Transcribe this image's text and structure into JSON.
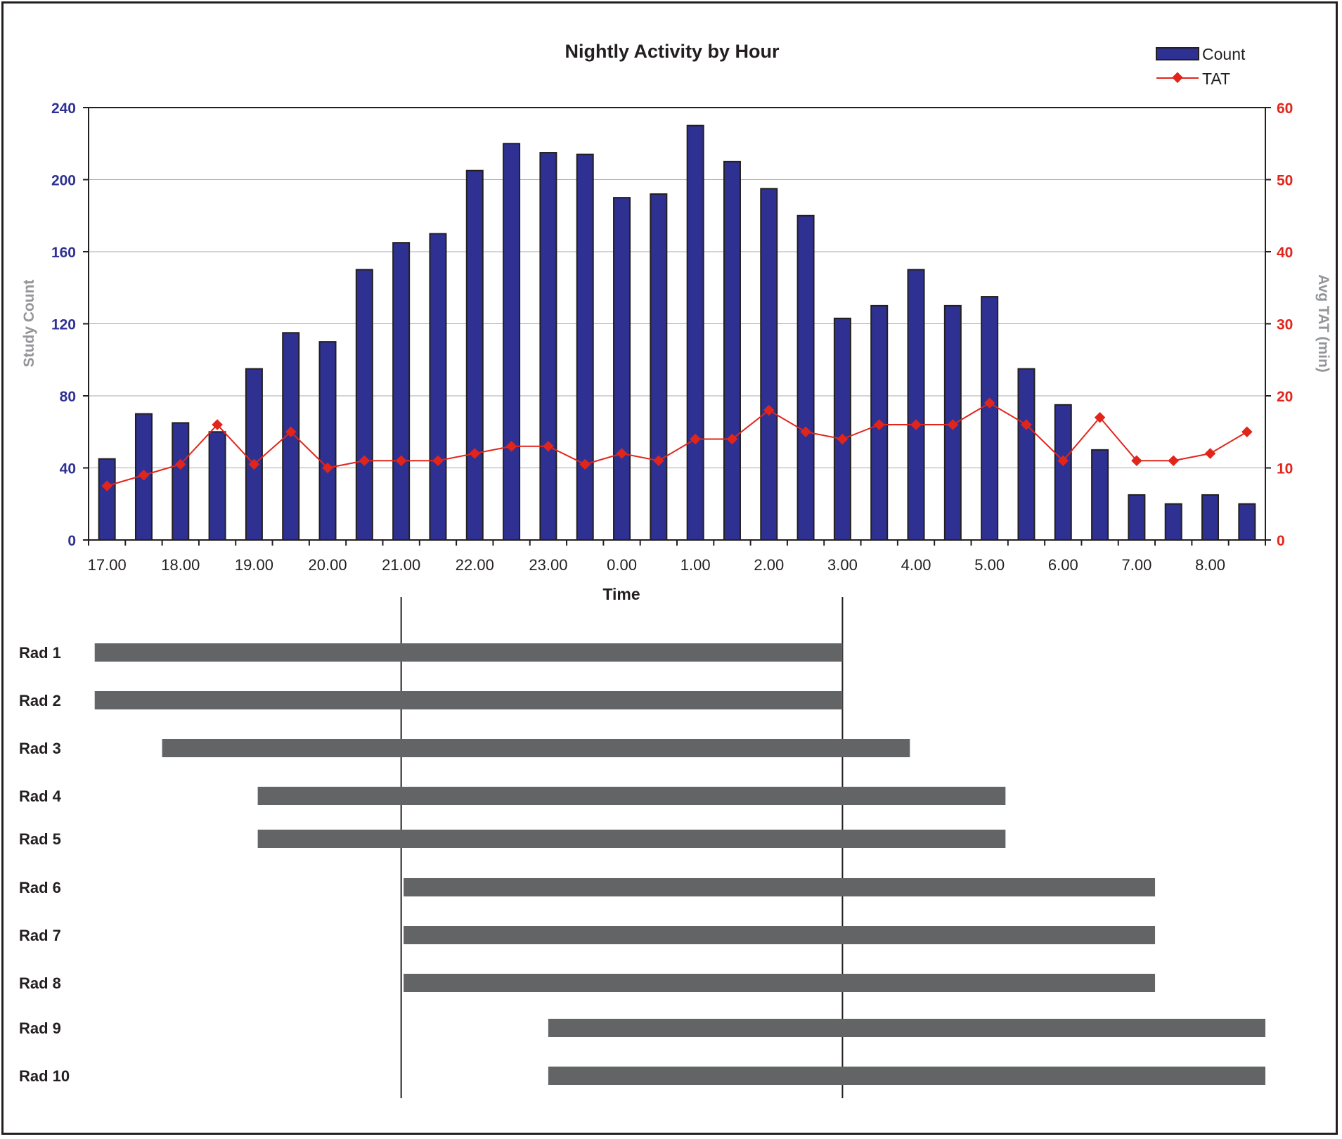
{
  "chart_data": {
    "type": "bar",
    "title": "Nightly Activity by Hour",
    "xlabel": "Time",
    "ylabel_left": "Study Count",
    "ylabel_right": "Avg TAT (min)",
    "ylim_left": [
      0,
      240
    ],
    "ylim_right": [
      0,
      60
    ],
    "yticks_left": [
      "0",
      "40",
      "80",
      "120",
      "160",
      "200",
      "240"
    ],
    "yticks_right": [
      "0",
      "10",
      "20",
      "30",
      "40",
      "50",
      "60"
    ],
    "xtick_labels": [
      "17.00",
      "18.00",
      "19.00",
      "20.00",
      "21.00",
      "22.00",
      "23.00",
      "0.00",
      "1.00",
      "2.00",
      "3.00",
      "4.00",
      "5.00",
      "6.00",
      "7.00",
      "8.00"
    ],
    "grid": true,
    "legend_position": "top-right",
    "series": [
      {
        "name": "Count",
        "axis": "left",
        "kind": "bar",
        "color": "#2e3192",
        "values": [
          45,
          70,
          65,
          60,
          95,
          115,
          110,
          150,
          165,
          170,
          205,
          220,
          215,
          214,
          190,
          192,
          230,
          210,
          195,
          180,
          123,
          130,
          150,
          130,
          135,
          95,
          75,
          50,
          25,
          20,
          25,
          20
        ]
      },
      {
        "name": "TAT",
        "axis": "right",
        "kind": "line",
        "color": "#e1251b",
        "values": [
          7.5,
          9,
          10.5,
          16,
          10.5,
          15,
          10,
          11,
          11,
          11,
          12,
          13,
          13,
          10.5,
          12,
          11,
          14,
          14,
          18,
          15,
          14,
          16,
          16,
          16,
          19,
          16,
          11,
          17,
          11,
          11,
          12,
          15
        ]
      }
    ]
  },
  "schedule": {
    "bar_color": "#636466",
    "markers": [
      "21:00",
      "3:00"
    ],
    "rows": [
      {
        "label": "Rad 1",
        "start": "16:50",
        "end": "3:00"
      },
      {
        "label": "Rad 2",
        "start": "16:50",
        "end": "3:00"
      },
      {
        "label": "Rad 3",
        "start": "17:45",
        "end": "3:55"
      },
      {
        "label": "Rad 4",
        "start": "19:03",
        "end": "5:13"
      },
      {
        "label": "Rad 5",
        "start": "19:03",
        "end": "5:13"
      },
      {
        "label": "Rad 6",
        "start": "21:02",
        "end": "7:15"
      },
      {
        "label": "Rad 7",
        "start": "21:02",
        "end": "7:15"
      },
      {
        "label": "Rad 8",
        "start": "21:02",
        "end": "7:15"
      },
      {
        "label": "Rad 9",
        "start": "23:00",
        "end": "8:45"
      },
      {
        "label": "Rad 10",
        "start": "23:00",
        "end": "8:45"
      }
    ]
  }
}
